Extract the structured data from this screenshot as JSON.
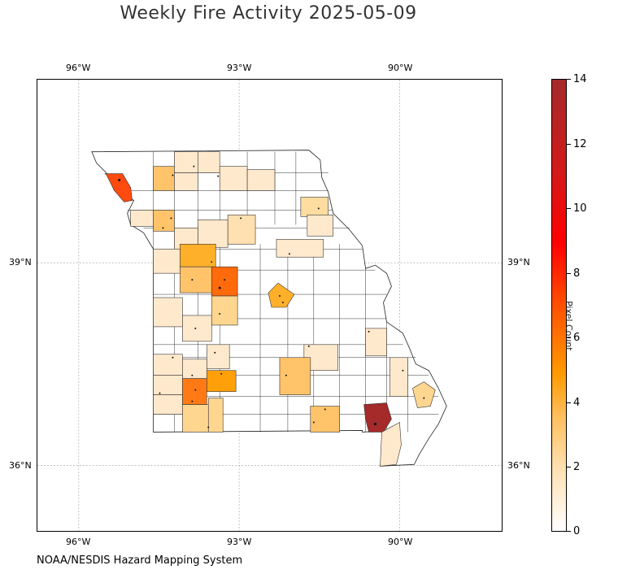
{
  "title": "Weekly Fire Activity 2025-05-09",
  "footer": "NOAA/NESDIS Hazard Mapping System",
  "axes": {
    "lon_labels": [
      "96°W",
      "93°W",
      "90°W"
    ],
    "lat_labels": [
      "39°N",
      "36°N"
    ]
  },
  "colorbar": {
    "title": "Pixel Count",
    "ticks": [
      "0",
      "2",
      "4",
      "6",
      "8",
      "10",
      "12",
      "14"
    ],
    "min": 0,
    "max": 14,
    "colors": [
      "#ffffff",
      "#ffe0b0",
      "#ffc060",
      "#ff9a00",
      "#ff5000",
      "#ff0000",
      "#d21a1a",
      "#a52a2a"
    ]
  },
  "map": {
    "region": "Missouri counties",
    "gridlines": true,
    "extent": {
      "lon": [
        -96.8,
        -88.1
      ],
      "lat": [
        34.9,
        41.6
      ]
    }
  }
}
